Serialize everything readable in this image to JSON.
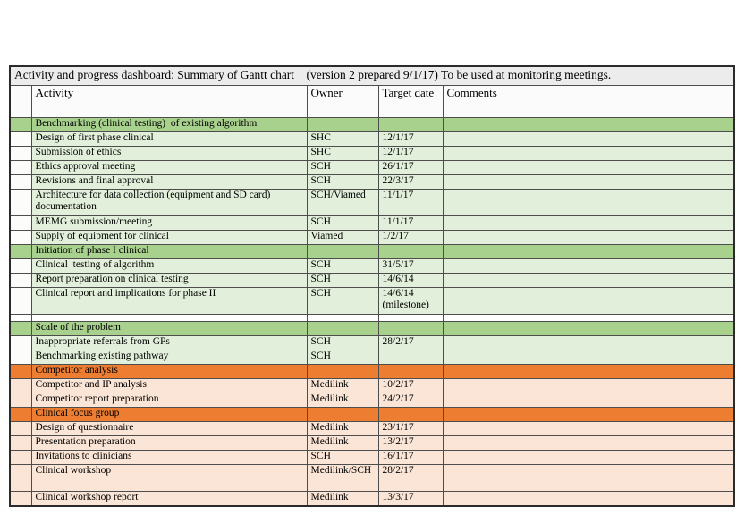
{
  "title_bar": {
    "text": "Activity and progress dashboard: Summary of Gantt chart    (version 2 prepared 9/1/17) To be used at monitoring meetings."
  },
  "colors": {
    "green_header": "#a9d18e",
    "green_row": "#e2efda",
    "green_first_col": "#fcfdfa",
    "orange_header": "#ed7d31",
    "orange_row": "#fbe5d6",
    "title_bg": "#ececec",
    "header_bg": "#fbfbfb",
    "border_inner": "#4d4d4d",
    "border_outer": "#2b2b2b"
  },
  "table": {
    "columns": {
      "activity": "Activity",
      "owner": "Owner",
      "target": "Target date",
      "comments": "Comments"
    },
    "rows": [
      {
        "type": "section",
        "theme": "green",
        "activity": "Benchmarking (clinical testing)  of existing algorithm"
      },
      {
        "type": "item",
        "theme": "green",
        "h": 1,
        "activity": "Design of first phase clinical",
        "owner": "SHC",
        "target": "12/1/17",
        "comments": ""
      },
      {
        "type": "item",
        "theme": "green",
        "h": 1,
        "activity": "Submission of ethics",
        "owner": "SHC",
        "target": "12/1/17",
        "comments": ""
      },
      {
        "type": "item",
        "theme": "green",
        "h": 1,
        "activity": "Ethics approval meeting",
        "owner": "SCH",
        "target": "26/1/17",
        "comments": ""
      },
      {
        "type": "item",
        "theme": "green",
        "h": 1,
        "activity": "Revisions and final approval",
        "owner": "SCH",
        "target": "22/3/17",
        "comments": ""
      },
      {
        "type": "item",
        "theme": "green",
        "h": 2,
        "activity": "Architecture for data collection (equipment and SD card) documentation",
        "owner": "SCH/Viamed",
        "target": "11/1/17",
        "comments": ""
      },
      {
        "type": "item",
        "theme": "green",
        "h": 1,
        "activity": "MEMG submission/meeting",
        "owner": "SCH",
        "target": "11/1/17",
        "comments": ""
      },
      {
        "type": "item",
        "theme": "green",
        "h": 1,
        "activity": "Supply of equipment for clinical",
        "owner": "Viamed",
        "target": "1/2/17",
        "comments": ""
      },
      {
        "type": "section",
        "theme": "green",
        "activity": "Initiation of phase I clinical"
      },
      {
        "type": "item",
        "theme": "green",
        "h": 1,
        "activity": "Clinical  testing of algorithm",
        "owner": "SCH",
        "target": "31/5/17",
        "comments": ""
      },
      {
        "type": "item",
        "theme": "green",
        "h": 1,
        "activity": "Report preparation on clinical testing",
        "owner": "SCH",
        "target": "14/6/14",
        "comments": ""
      },
      {
        "type": "item",
        "theme": "green",
        "h": 2,
        "activity": "Clinical report and implications for phase II",
        "owner": "SCH",
        "target": "14/6/14 (milestone)",
        "comments": ""
      },
      {
        "type": "blank"
      },
      {
        "type": "section",
        "theme": "green",
        "activity": "Scale of the problem"
      },
      {
        "type": "item",
        "theme": "green",
        "h": 1,
        "activity": "Inappropriate referrals from GPs",
        "owner": "SCH",
        "target": "28/2/17",
        "comments": ""
      },
      {
        "type": "item",
        "theme": "green",
        "h": 1,
        "activity": "Benchmarking existing pathway",
        "owner": "SCH",
        "target": "",
        "comments": ""
      },
      {
        "type": "section",
        "theme": "orange",
        "activity": "Competitor analysis"
      },
      {
        "type": "item",
        "theme": "orange",
        "h": 1,
        "activity": "Competitor and IP analysis",
        "owner": "Medilink",
        "target": "10/2/17",
        "comments": ""
      },
      {
        "type": "item",
        "theme": "orange",
        "h": 1,
        "activity": "Competitor report preparation",
        "owner": "Medilink",
        "target": "24/2/17",
        "comments": ""
      },
      {
        "type": "section",
        "theme": "orange",
        "activity": "Clinical focus group"
      },
      {
        "type": "item",
        "theme": "orange",
        "h": 1,
        "activity": "Design of questionnaire",
        "owner": "Medilink",
        "target": "23/1/17",
        "comments": ""
      },
      {
        "type": "item",
        "theme": "orange",
        "h": 1,
        "activity": "Presentation preparation",
        "owner": "Medilink",
        "target": "13/2/17",
        "comments": ""
      },
      {
        "type": "item",
        "theme": "orange",
        "h": 1,
        "activity": "Invitations to clinicians",
        "owner": "SCH",
        "target": "16/1/17",
        "comments": ""
      },
      {
        "type": "item",
        "theme": "orange",
        "h": 2,
        "activity": "Clinical workshop",
        "owner": "Medilink/SCH",
        "target": "28/2/17",
        "comments": ""
      },
      {
        "type": "item",
        "theme": "orange",
        "h": 1,
        "activity": "Clinical workshop report",
        "owner": "Medilink",
        "target": "13/3/17",
        "comments": ""
      }
    ]
  }
}
